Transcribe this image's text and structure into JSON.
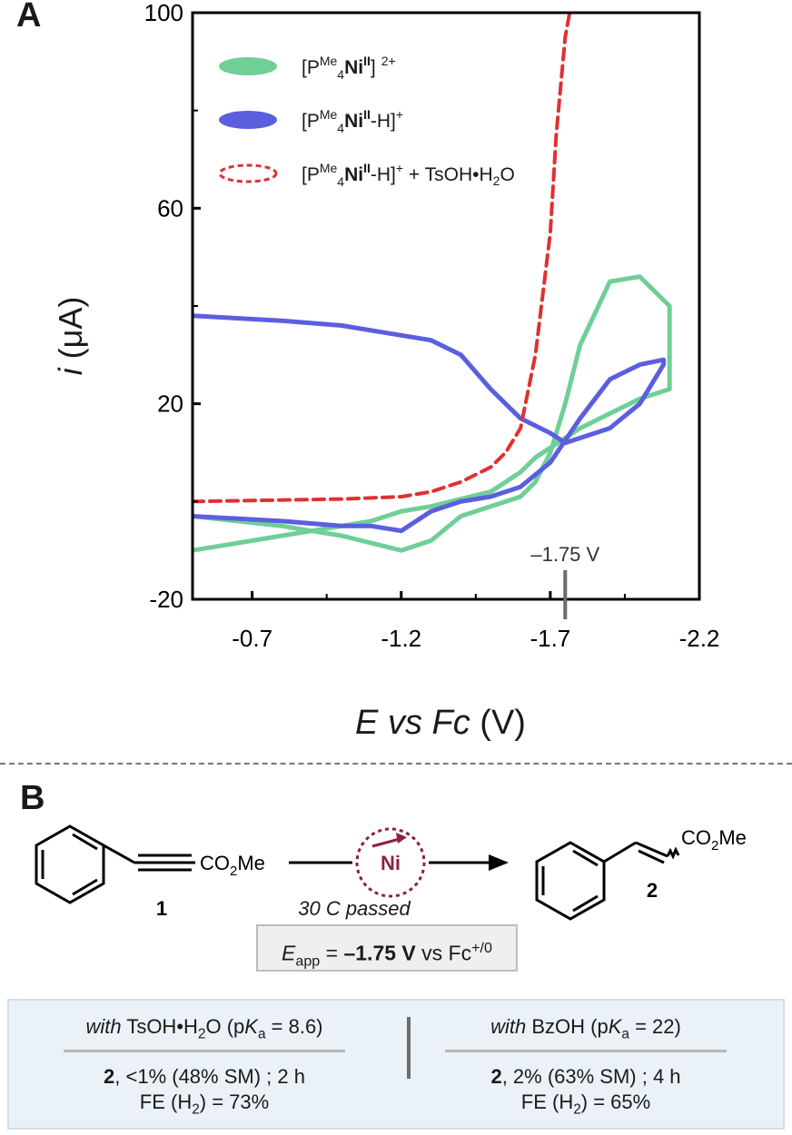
{
  "panel_a_label": "A",
  "panel_b_label": "B",
  "chart_data": {
    "type": "line",
    "xlabel_e": "E",
    "xlabel_vs": " vs ",
    "xlabel_fc": "Fc",
    "xlabel_unit": " (V)",
    "ylabel_i": "i",
    "ylabel_unit": " (μA)",
    "xlim": [
      -0.5,
      -2.2
    ],
    "ylim": [
      -20,
      100
    ],
    "x_ticks": [
      -0.7,
      -1.2,
      -1.7,
      -2.2
    ],
    "x_tick_labels": [
      "-0.7",
      "-1.2",
      "-1.7",
      "-2.2"
    ],
    "y_ticks": [
      100,
      60,
      20,
      -20
    ],
    "y_tick_labels": [
      "100",
      "60",
      "20",
      "-20"
    ],
    "marker": {
      "x": -1.75,
      "label": "–1.75 V"
    },
    "legend_position": "top-left",
    "legend": [
      {
        "text": "[PMe4NiII]2+",
        "parts": [
          "[P",
          "Me",
          "4",
          "Ni",
          "II",
          "]",
          "2+"
        ]
      },
      {
        "text": "[PMe4NiII-H]+",
        "parts": [
          "[P",
          "Me",
          "4",
          "Ni",
          "II",
          "-H]",
          "+"
        ]
      },
      {
        "text": "[PMe4NiII-H]+ + TsOH•H2O",
        "parts": [
          "[P",
          "Me",
          "4",
          "Ni",
          "II",
          "-H]",
          "+",
          " + TsOH•H",
          "2",
          "O"
        ]
      }
    ],
    "series": [
      {
        "name": "[PMe4NiII]2+",
        "color": "#6fcf97",
        "style": "solid",
        "x": [
          -0.5,
          -0.8,
          -1.0,
          -1.2,
          -1.3,
          -1.4,
          -1.5,
          -1.6,
          -1.65,
          -1.7,
          -1.75,
          -1.8,
          -1.9,
          -2.0,
          -2.1,
          -2.1,
          -2.0,
          -1.9,
          -1.8,
          -1.75,
          -1.7,
          -1.65,
          -1.6,
          -1.5,
          -1.4,
          -1.3,
          -1.2,
          -1.1,
          -1.0,
          -0.8,
          -0.6,
          -0.5
        ],
        "y": [
          -3,
          -5,
          -7,
          -10,
          -8,
          -3,
          -1,
          1,
          4,
          10,
          20,
          32,
          45,
          46,
          40,
          23,
          21,
          18,
          15,
          13,
          11,
          9,
          6,
          2,
          0.5,
          -1,
          -2,
          -4,
          -5,
          -7,
          -9,
          -10
        ]
      },
      {
        "name": "[PMe4NiII-H]+",
        "color": "#5c5ee0",
        "style": "solid",
        "x": [
          -0.5,
          -0.8,
          -1.0,
          -1.1,
          -1.2,
          -1.3,
          -1.4,
          -1.5,
          -1.6,
          -1.7,
          -1.8,
          -1.9,
          -2.0,
          -2.08,
          -2.08,
          -2.0,
          -1.9,
          -1.8,
          -1.75,
          -1.7,
          -1.6,
          -1.5,
          -1.4,
          -1.3,
          -1.2,
          -1.0,
          -0.8,
          -0.5
        ],
        "y": [
          -3,
          -4,
          -5,
          -5,
          -6,
          -2,
          0,
          1,
          3,
          8,
          17,
          25,
          28,
          29,
          28,
          20,
          15,
          13,
          12,
          14,
          17,
          23,
          30,
          33,
          34,
          36,
          37,
          38
        ]
      },
      {
        "name": "[PMe4NiII-H]+ + TsOH•H2O",
        "color": "#e03030",
        "style": "dashed",
        "x": [
          -0.5,
          -1.0,
          -1.2,
          -1.3,
          -1.4,
          -1.5,
          -1.55,
          -1.6,
          -1.65,
          -1.7,
          -1.72,
          -1.75,
          -1.78
        ],
        "y": [
          0,
          0.5,
          1,
          2,
          4,
          7,
          10,
          15,
          30,
          55,
          75,
          95,
          105
        ]
      }
    ]
  },
  "scheme": {
    "ester_label": "CO₂Me",
    "ester_parts": [
      "CO",
      "2",
      "Me"
    ],
    "compound_1": "1",
    "catalyst": "Ni",
    "conditions": "30 C passed",
    "product_ester_parts": [
      "CO",
      "2",
      "Me"
    ],
    "compound_2": "2",
    "eapp_e": "E",
    "eapp_sub": "app",
    "eapp_eq": " = ",
    "eapp_value": "–1.75 V",
    "eapp_vs": " vs Fc",
    "eapp_sup": "+/0"
  },
  "results": {
    "left": {
      "with": "with",
      "acid": " TsOH•H",
      "acid_sub": "2",
      "acid_tail": "O (p",
      "k": "K",
      "k_sub": "a",
      "pka": " = 8.6)",
      "product": "2",
      "yield": ", <1% (48% SM) ; 2 h",
      "fe": "FE (H",
      "fe_sub": "2",
      "fe_tail": ") = 73%"
    },
    "right": {
      "with": "with",
      "acid": " BzOH (p",
      "k": "K",
      "k_sub": "a",
      "pka": " = 22)",
      "product": "2",
      "yield": ", 2% (63% SM) ; 4 h",
      "fe": "FE (H",
      "fe_sub": "2",
      "fe_tail": ") = 65%"
    }
  }
}
